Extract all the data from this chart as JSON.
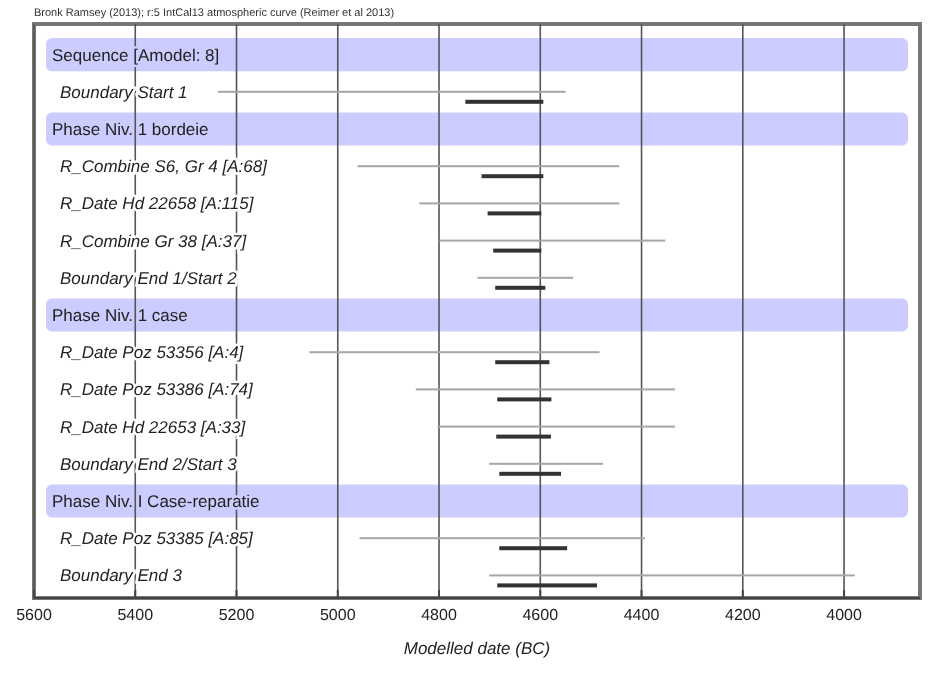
{
  "chart_data": {
    "type": "bar",
    "orientation": "horizontal",
    "annotations": [
      "Bronk Ramsey (2013); r:5 IntCal13 atmospheric curve (Reimer et al 2013)"
    ],
    "xlabel": "Modelled date (BC)",
    "xlim": [
      5600,
      3850
    ],
    "xticks": [
      5600,
      5400,
      5200,
      5000,
      4800,
      4600,
      4400,
      4200,
      4000
    ],
    "grid": "x",
    "categories": [
      "Sequence [Amodel: 8]",
      "Boundary Start 1",
      "Phase Niv. 1 bordeie",
      "R_Combine S6, Gr 4 [A:68]",
      "R_Date Hd 22658 [A:115]",
      "R_Combine Gr 38 [A:37]",
      "Boundary End 1/Start 2",
      "Phase Niv. 1 case",
      "R_Date Poz 53356 [A:4]",
      "R_Date Poz 53386 [A:74]",
      "R_Date Hd 22653 [A:33]",
      "Boundary End 2/Start 3",
      "Phase Niv. I Case-reparatie",
      "R_Date Poz 53385 [A:85]",
      "Boundary End 3"
    ],
    "series": [
      {
        "color": "#a6a6a6",
        "base": [
          null,
          5237,
          null,
          4961,
          4839,
          4799,
          4724,
          null,
          5056,
          4846,
          4803,
          4701,
          null,
          4957,
          4701
        ],
        "values": [
          null,
          -687,
          null,
          -517,
          -395,
          -446,
          -189,
          null,
          -573,
          -512,
          -469,
          -225,
          null,
          -564,
          -722
        ]
      },
      {
        "color": "#333333",
        "base": [
          null,
          4748,
          null,
          4716,
          4704,
          4693,
          4689,
          null,
          4689,
          4685,
          4687,
          4681,
          null,
          4681,
          4685
        ],
        "values": [
          null,
          -154,
          null,
          -122,
          -106,
          -95,
          -99,
          null,
          -107,
          -107,
          -108,
          -122,
          null,
          -134,
          -197
        ]
      }
    ]
  }
}
